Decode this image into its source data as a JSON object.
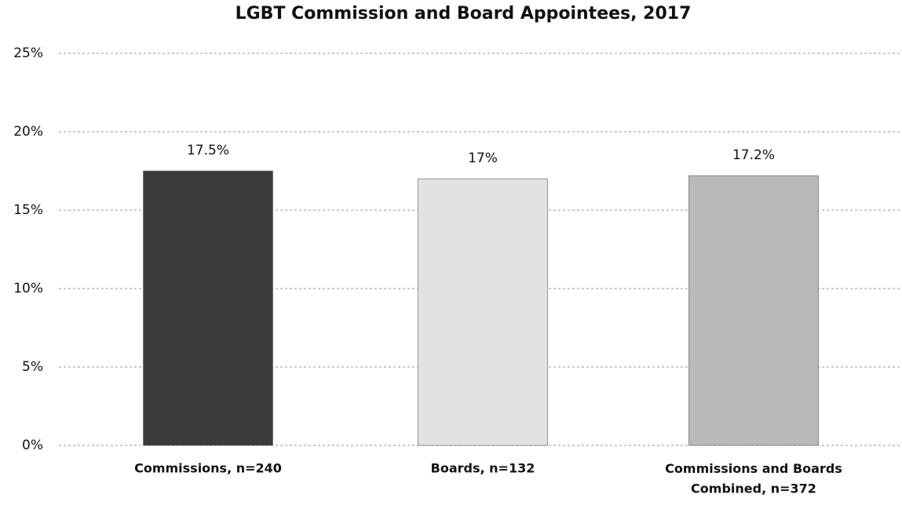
{
  "chart_data": {
    "type": "bar",
    "title": "LGBT Commission and Board Appointees, 2017",
    "categories": [
      "Commissions, n=240",
      "Boards, n=132",
      "Commissions and Boards Combined, n=372"
    ],
    "values": [
      17.5,
      17,
      17.2
    ],
    "value_labels": [
      "17.5%",
      "17%",
      "17.2%"
    ],
    "colors": [
      "#3b3b3b",
      "#e2e2e2",
      "#b9b9b9"
    ],
    "ylim": [
      0,
      25
    ],
    "yticks": [
      {
        "value": 0,
        "label": "0%"
      },
      {
        "value": 5,
        "label": "5%"
      },
      {
        "value": 10,
        "label": "10%"
      },
      {
        "value": 15,
        "label": "15%"
      },
      {
        "value": 20,
        "label": "20%"
      },
      {
        "value": 25,
        "label": "25%"
      }
    ],
    "grid": true
  }
}
